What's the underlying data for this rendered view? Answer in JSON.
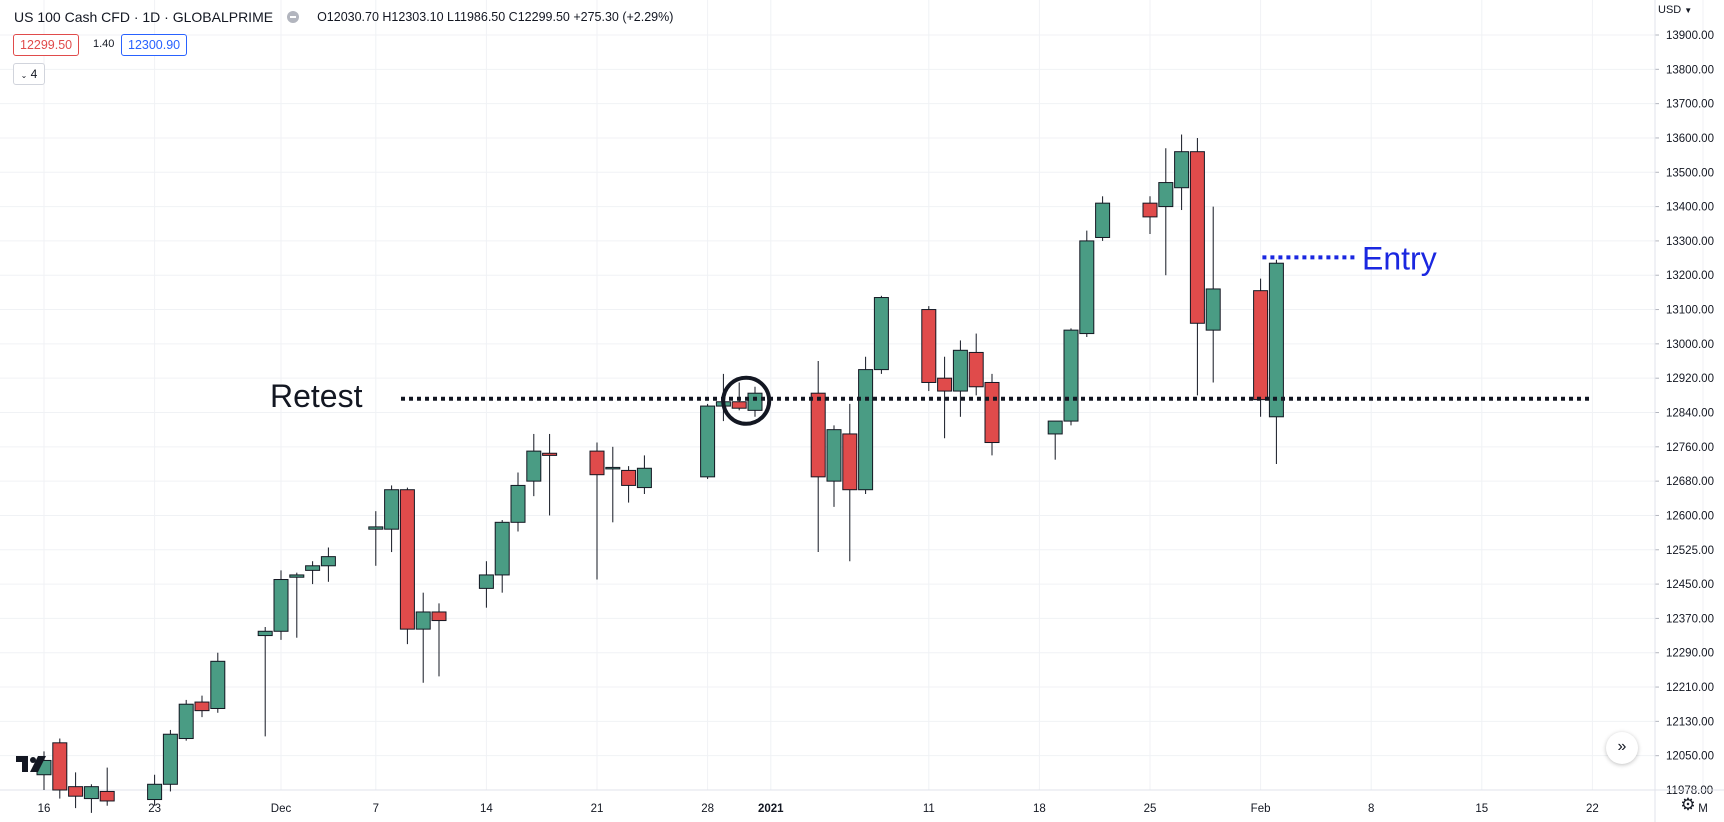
{
  "header": {
    "symbol": "US 100 Cash CFD · 1D · GLOBALPRIME",
    "ohlc": "O12030.70  H12303.10  L11986.50  C12299.50  +275.30 (+2.29%)",
    "bid": "12299.50",
    "spread": "1.40",
    "ask": "12300.90",
    "indicator_badge": "4"
  },
  "currency": "USD",
  "colors": {
    "up": "#4a9c84",
    "down": "#e04b4b",
    "retest_line": "#131722",
    "entry": "#1a27e0",
    "grid": "#f0f2f5"
  },
  "icons": {
    "scroll": "double-chevron-right-icon",
    "settings": "gear-icon",
    "logo": "tradingview-logo-icon",
    "currency_menu": "chevron-down-icon"
  },
  "chart_data": {
    "type": "candlestick",
    "title": "US 100 Cash CFD · 1D · GLOBALPRIME",
    "ylim": [
      11940,
      13960
    ],
    "y_ticks": [
      {
        "label": "13900.00",
        "value": 13900
      },
      {
        "label": "13800.00",
        "value": 13800
      },
      {
        "label": "13700.00",
        "value": 13700
      },
      {
        "label": "13600.00",
        "value": 13600
      },
      {
        "label": "13500.00",
        "value": 13500
      },
      {
        "label": "13400.00",
        "value": 13400
      },
      {
        "label": "13300.00",
        "value": 13300
      },
      {
        "label": "13200.00",
        "value": 13200
      },
      {
        "label": "13100.00",
        "value": 13100
      },
      {
        "label": "13000.00",
        "value": 13000
      },
      {
        "label": "12920.00",
        "value": 12920
      },
      {
        "label": "12840.00",
        "value": 12840
      },
      {
        "label": "12760.00",
        "value": 12760
      },
      {
        "label": "12680.00",
        "value": 12680
      },
      {
        "label": "12600.00",
        "value": 12600
      },
      {
        "label": "12525.00",
        "value": 12525
      },
      {
        "label": "12450.00",
        "value": 12450
      },
      {
        "label": "12370.00",
        "value": 12370
      },
      {
        "label": "12290.00",
        "value": 12290
      },
      {
        "label": "12210.00",
        "value": 12210
      },
      {
        "label": "12130.00",
        "value": 12130
      },
      {
        "label": "12050.00",
        "value": 12050
      },
      {
        "label": "11978.00",
        "value": 11978
      }
    ],
    "x_ticks": [
      {
        "label": "16",
        "date": "2020-11-16"
      },
      {
        "label": "23",
        "date": "2020-11-23"
      },
      {
        "label": "Dec",
        "date": "2020-12-01"
      },
      {
        "label": "7",
        "date": "2020-12-07"
      },
      {
        "label": "14",
        "date": "2020-12-14"
      },
      {
        "label": "21",
        "date": "2020-12-21"
      },
      {
        "label": "28",
        "date": "2020-12-28"
      },
      {
        "label": "2021",
        "date": "2021-01-01",
        "bold": true
      },
      {
        "label": "11",
        "date": "2021-01-11"
      },
      {
        "label": "18",
        "date": "2021-01-18"
      },
      {
        "label": "25",
        "date": "2021-01-25"
      },
      {
        "label": "Feb",
        "date": "2021-02-01"
      },
      {
        "label": "8",
        "date": "2021-02-08"
      },
      {
        "label": "15",
        "date": "2021-02-15"
      },
      {
        "label": "22",
        "date": "2021-02-22"
      },
      {
        "label": "M",
        "date": "2021-03-01"
      }
    ],
    "candles": [
      {
        "date": "2020-11-16",
        "o": 12010,
        "h": 12060,
        "l": 11978,
        "c": 12040
      },
      {
        "date": "2020-11-17",
        "o": 12080,
        "h": 12090,
        "l": 11960,
        "c": 11978
      },
      {
        "date": "2020-11-18",
        "o": 11985,
        "h": 12015,
        "l": 11940,
        "c": 11965
      },
      {
        "date": "2020-11-19",
        "o": 11960,
        "h": 11990,
        "l": 11930,
        "c": 11985
      },
      {
        "date": "2020-11-20",
        "o": 11975,
        "h": 12025,
        "l": 11945,
        "c": 11955
      },
      {
        "date": "2020-11-23",
        "o": 11958,
        "h": 12010,
        "l": 11945,
        "c": 11990
      },
      {
        "date": "2020-11-24",
        "o": 11990,
        "h": 12110,
        "l": 11975,
        "c": 12100
      },
      {
        "date": "2020-11-25",
        "o": 12090,
        "h": 12180,
        "l": 12085,
        "c": 12170
      },
      {
        "date": "2020-11-26",
        "o": 12175,
        "h": 12190,
        "l": 12140,
        "c": 12155
      },
      {
        "date": "2020-11-27",
        "o": 12160,
        "h": 12290,
        "l": 12150,
        "c": 12270
      },
      {
        "date": "2020-11-30",
        "o": 12330,
        "h": 12350,
        "l": 12095,
        "c": 12340
      },
      {
        "date": "2020-12-01",
        "o": 12340,
        "h": 12480,
        "l": 12320,
        "c": 12460
      },
      {
        "date": "2020-12-02",
        "o": 12465,
        "h": 12475,
        "l": 12325,
        "c": 12470
      },
      {
        "date": "2020-12-03",
        "o": 12480,
        "h": 12500,
        "l": 12450,
        "c": 12490
      },
      {
        "date": "2020-12-04",
        "o": 12490,
        "h": 12530,
        "l": 12455,
        "c": 12510
      },
      {
        "date": "2020-12-07",
        "o": 12570,
        "h": 12610,
        "l": 12490,
        "c": 12575
      },
      {
        "date": "2020-12-08",
        "o": 12570,
        "h": 12670,
        "l": 12520,
        "c": 12660
      },
      {
        "date": "2020-12-09",
        "o": 12660,
        "h": 12665,
        "l": 12310,
        "c": 12345
      },
      {
        "date": "2020-12-10",
        "o": 12345,
        "h": 12430,
        "l": 12220,
        "c": 12385
      },
      {
        "date": "2020-12-11",
        "o": 12385,
        "h": 12405,
        "l": 12235,
        "c": 12365
      },
      {
        "date": "2020-12-14",
        "o": 12440,
        "h": 12500,
        "l": 12395,
        "c": 12470
      },
      {
        "date": "2020-12-15",
        "o": 12470,
        "h": 12590,
        "l": 12430,
        "c": 12585
      },
      {
        "date": "2020-12-16",
        "o": 12585,
        "h": 12700,
        "l": 12565,
        "c": 12670
      },
      {
        "date": "2020-12-17",
        "o": 12680,
        "h": 12790,
        "l": 12645,
        "c": 12750
      },
      {
        "date": "2020-12-18",
        "o": 12745,
        "h": 12790,
        "l": 12600,
        "c": 12740
      },
      {
        "date": "2020-12-21",
        "o": 12750,
        "h": 12770,
        "l": 12460,
        "c": 12695
      },
      {
        "date": "2020-12-22",
        "o": 12710,
        "h": 12760,
        "l": 12585,
        "c": 12712
      },
      {
        "date": "2020-12-23",
        "o": 12705,
        "h": 12715,
        "l": 12630,
        "c": 12670
      },
      {
        "date": "2020-12-24",
        "o": 12665,
        "h": 12740,
        "l": 12650,
        "c": 12710
      },
      {
        "date": "2020-12-28",
        "o": 12690,
        "h": 12860,
        "l": 12685,
        "c": 12855
      },
      {
        "date": "2020-12-29",
        "o": 12855,
        "h": 12930,
        "l": 12820,
        "c": 12865
      },
      {
        "date": "2020-12-30",
        "o": 12865,
        "h": 12910,
        "l": 12845,
        "c": 12850
      },
      {
        "date": "2020-12-31",
        "o": 12845,
        "h": 12900,
        "l": 12830,
        "c": 12885
      },
      {
        "date": "2021-01-04",
        "o": 12885,
        "h": 12960,
        "l": 12520,
        "c": 12690
      },
      {
        "date": "2021-01-05",
        "o": 12680,
        "h": 12810,
        "l": 12620,
        "c": 12800
      },
      {
        "date": "2021-01-06",
        "o": 12790,
        "h": 12860,
        "l": 12500,
        "c": 12660
      },
      {
        "date": "2021-01-07",
        "o": 12660,
        "h": 12970,
        "l": 12650,
        "c": 12940
      },
      {
        "date": "2021-01-08",
        "o": 12940,
        "h": 13140,
        "l": 12930,
        "c": 13135
      },
      {
        "date": "2021-01-11",
        "o": 13100,
        "h": 13110,
        "l": 12890,
        "c": 12910
      },
      {
        "date": "2021-01-12",
        "o": 12920,
        "h": 12970,
        "l": 12780,
        "c": 12890
      },
      {
        "date": "2021-01-13",
        "o": 12890,
        "h": 13010,
        "l": 12830,
        "c": 12985
      },
      {
        "date": "2021-01-14",
        "o": 12980,
        "h": 13030,
        "l": 12880,
        "c": 12900
      },
      {
        "date": "2021-01-15",
        "o": 12910,
        "h": 12930,
        "l": 12740,
        "c": 12770
      },
      {
        "date": "2021-01-19",
        "o": 12790,
        "h": 12820,
        "l": 12730,
        "c": 12820
      },
      {
        "date": "2021-01-20",
        "o": 12820,
        "h": 13045,
        "l": 12810,
        "c": 13040
      },
      {
        "date": "2021-01-21",
        "o": 13030,
        "h": 13330,
        "l": 13020,
        "c": 13300
      },
      {
        "date": "2021-01-22",
        "o": 13310,
        "h": 13430,
        "l": 13300,
        "c": 13410
      },
      {
        "date": "2021-01-25",
        "o": 13410,
        "h": 13430,
        "l": 13320,
        "c": 13370
      },
      {
        "date": "2021-01-26",
        "o": 13400,
        "h": 13570,
        "l": 13200,
        "c": 13470
      },
      {
        "date": "2021-01-27",
        "o": 13455,
        "h": 13610,
        "l": 13390,
        "c": 13560
      },
      {
        "date": "2021-01-28",
        "o": 13560,
        "h": 13600,
        "l": 12880,
        "c": 13060
      },
      {
        "date": "2021-01-29",
        "o": 13040,
        "h": 13400,
        "l": 12910,
        "c": 13160
      },
      {
        "date": "2021-02-01",
        "o": 13155,
        "h": 13190,
        "l": 12830,
        "c": 12870
      },
      {
        "date": "2021-02-02",
        "o": 12830,
        "h": 13245,
        "l": 12720,
        "c": 13235
      }
    ],
    "annotations": {
      "retest": {
        "label": "Retest",
        "price": 12872,
        "from": "2020-12-01",
        "to": "2021-03-01"
      },
      "entry": {
        "label": "Entry",
        "price": 13252,
        "from": "2021-02-02",
        "to": "2021-02-08"
      },
      "circle_date": "2020-12-30"
    }
  }
}
